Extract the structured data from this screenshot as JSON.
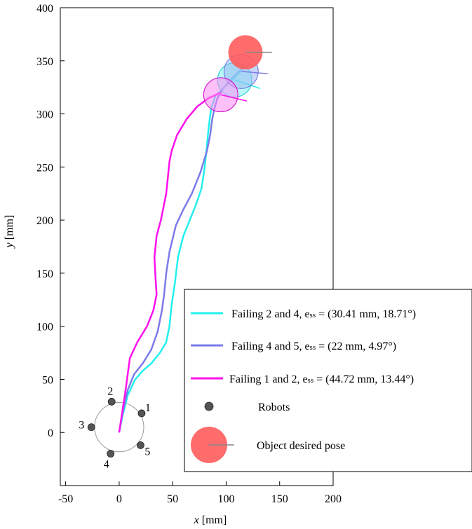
{
  "chart_data": {
    "type": "line",
    "xlabel_var": "x",
    "xlabel_unit": "[mm]",
    "ylabel_var": "y",
    "ylabel_unit": "[mm]",
    "xlim": [
      -55,
      200
    ],
    "ylim": [
      -50,
      400
    ],
    "xticks": [
      -50,
      0,
      50,
      100,
      150,
      200
    ],
    "yticks": [
      0,
      50,
      100,
      150,
      200,
      250,
      300,
      350,
      400
    ],
    "grid": false,
    "legend_position": "bottom-right",
    "colors": {
      "failing_2_4": "#22f0ee",
      "failing_4_5": "#7b7bea",
      "failing_1_2": "#ff10ee",
      "robots": "#555555",
      "object_desired": "#ff5c5c",
      "orientation_line": "#888888",
      "initial_circle": "#999999"
    },
    "series": [
      {
        "key": "failing_2_4",
        "name": "Failing 2 and 4, ess = (30.41 mm, 18.71°)",
        "legend_prefix": "Failing 2 and 4, e",
        "legend_sub": "ss",
        "legend_suffix": " = (30.41 mm, 18.71°)",
        "x": [
          0,
          3,
          8,
          15,
          22,
          30,
          38,
          44,
          47,
          49,
          52,
          55,
          60,
          66,
          72,
          77,
          80,
          82,
          84,
          86,
          90,
          98,
          106,
          113
        ],
        "y": [
          0,
          15,
          35,
          50,
          58,
          65,
          75,
          85,
          100,
          120,
          140,
          165,
          185,
          200,
          215,
          230,
          250,
          270,
          290,
          305,
          317,
          325,
          332,
          340
        ],
        "end_center": [
          108,
          332
        ],
        "end_orientation_deg": -18.7
      },
      {
        "key": "failing_4_5",
        "name": "Failing 4 and 5, ess = (22 mm, 4.97°)",
        "legend_prefix": "Failing 4 and 5, e",
        "legend_sub": "ss",
        "legend_suffix": " = (22 mm, 4.97°)",
        "x": [
          0,
          3,
          8,
          14,
          22,
          30,
          36,
          40,
          42,
          44,
          47,
          53,
          60,
          68,
          76,
          82,
          85,
          87,
          89,
          92,
          98,
          105,
          112,
          118
        ],
        "y": [
          0,
          18,
          40,
          55,
          65,
          78,
          95,
          115,
          130,
          150,
          170,
          195,
          210,
          225,
          245,
          265,
          280,
          295,
          305,
          315,
          325,
          333,
          340,
          345
        ],
        "end_center": [
          114,
          340
        ],
        "end_orientation_deg": -5.0
      },
      {
        "key": "failing_1_2",
        "name": "Failing 1 and 2, ess = (44.72 mm, 13.44°)",
        "legend_prefix": "Failing 1 and 2, e",
        "legend_sub": "ss",
        "legend_suffix": " = (44.72 mm, 13.44°)",
        "x": [
          0,
          3,
          6,
          10,
          17,
          26,
          32,
          35,
          34,
          33,
          35,
          39,
          44,
          46,
          47,
          49,
          54,
          63,
          73,
          84,
          95
        ],
        "y": [
          0,
          20,
          40,
          70,
          85,
          100,
          115,
          130,
          145,
          165,
          185,
          200,
          225,
          245,
          255,
          265,
          280,
          295,
          307,
          315,
          320
        ],
        "end_center": [
          95,
          318
        ],
        "end_orientation_deg": -13.4
      }
    ],
    "robots": [
      {
        "label": "1",
        "x": 21,
        "y": 18
      },
      {
        "label": "2",
        "x": -7,
        "y": 29
      },
      {
        "label": "3",
        "x": -26,
        "y": 5
      },
      {
        "label": "4",
        "x": -8,
        "y": -20
      },
      {
        "label": "5",
        "x": 20,
        "y": -12
      }
    ],
    "initial_circle": {
      "cx": 0,
      "cy": 5,
      "r": 23
    },
    "object_desired_pose": {
      "x": 118,
      "y": 358,
      "orientation_deg": 0
    },
    "legend": {
      "robots_label": "Robots",
      "object_label": "Object desired pose"
    }
  }
}
